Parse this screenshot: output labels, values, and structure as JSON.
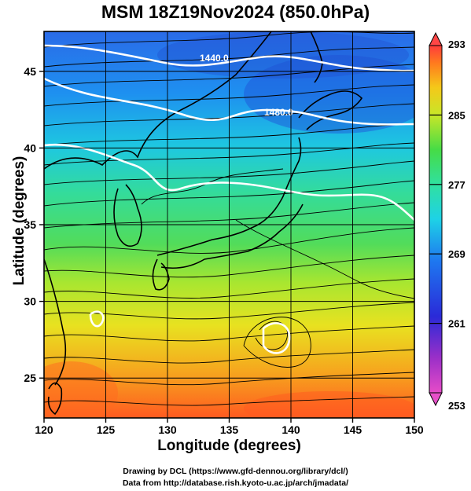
{
  "title": "MSM 18Z19Nov2024 (850.0hPa)",
  "xlabel": "Longitude (degrees)",
  "ylabel": "Latitude  (degrees)",
  "credits": [
    "Drawing by DCL (https://www.gfd-dennou.org/library/dcl/)",
    "Data from http://database.rish.kyoto-u.ac.jp/arch/jmadata/"
  ],
  "map": {
    "lon_range": [
      120,
      150
    ],
    "lat_range": [
      22.4,
      47.6
    ],
    "x_ticks": [
      "120",
      "125",
      "130",
      "135",
      "140",
      "145",
      "150"
    ],
    "y_ticks": [
      "25",
      "30",
      "35",
      "40",
      "45"
    ],
    "grid": true
  },
  "contours": {
    "field": "geopotential height",
    "color": "#ffffff",
    "labels": [
      "1440.0",
      "1480.0"
    ]
  },
  "colorbar": {
    "min": 253,
    "max": 293,
    "tick_labels": [
      "293",
      "285",
      "277",
      "269",
      "261",
      "253"
    ],
    "colors": [
      "#e64cc8",
      "#9b2fc8",
      "#2a2ad8",
      "#1e78f0",
      "#1ed2e6",
      "#30e0a0",
      "#46dc46",
      "#a0e628",
      "#e6e61e",
      "#f5a019",
      "#ff5a1e",
      "#ff3c3c"
    ]
  }
}
